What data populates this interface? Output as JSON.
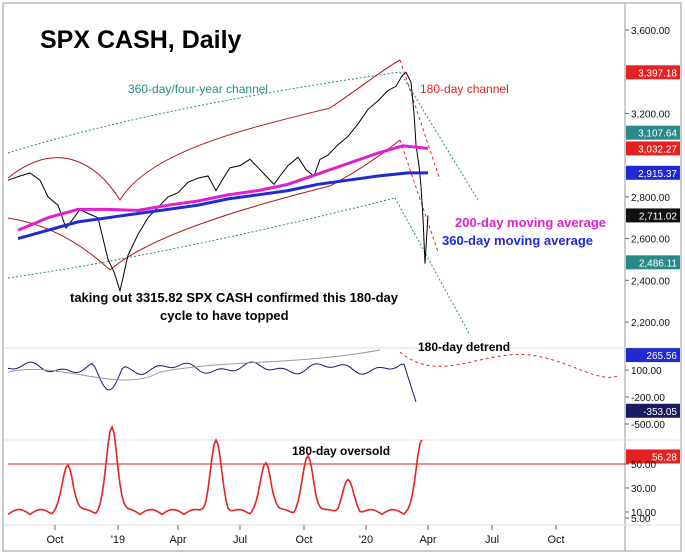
{
  "chart_data": {
    "type": "line",
    "title": "SPX CASH, Daily",
    "x_ticks": [
      "Oct",
      "'19",
      "Apr",
      "Jul",
      "Oct",
      "'20",
      "Apr",
      "Jul",
      "Oct"
    ],
    "price_panel": {
      "y_ticks": [
        {
          "label": "3,600.00",
          "value": 3600
        },
        {
          "label": "3,200.00",
          "value": 3200
        },
        {
          "label": "2,800.00",
          "value": 2800
        },
        {
          "label": "2,600.00",
          "value": 2600
        },
        {
          "label": "2,400.00",
          "value": 2400
        },
        {
          "label": "2,200.00",
          "value": 2200
        }
      ],
      "value_tags": [
        {
          "label": "3,397.18",
          "value": 3397.18,
          "color": "#e32222",
          "text_color": "#ffffff"
        },
        {
          "label": "3,107.64",
          "value": 3107.64,
          "color": "#2a8a8a",
          "text_color": "#ffffff"
        },
        {
          "label": "3,032.27",
          "value": 3032.27,
          "color": "#e32222",
          "text_color": "#ffffff"
        },
        {
          "label": "2,915.37",
          "value": 2915.37,
          "color": "#1f2ad0",
          "text_color": "#ffffff"
        },
        {
          "label": "2,711.02",
          "value": 2711.02,
          "color": "#111111",
          "text_color": "#ffffff"
        },
        {
          "label": "2,486.11",
          "value": 2486.11,
          "color": "#2a8a8a",
          "text_color": "#ffffff"
        }
      ],
      "annotations": {
        "channel_360": "360-day/four-year channel",
        "channel_180": "180-day channel",
        "ma200": "200-day moving average",
        "ma360": "360-day moving average",
        "note_line1": "taking out 3315.82 SPX CASH confirmed this 180-day",
        "note_line2": "cycle to have topped"
      }
    },
    "detrend_panel": {
      "title": "180-day detrend",
      "y_ticks": [
        {
          "label": "100.00",
          "value": 100
        },
        {
          "label": "-200.00",
          "value": -200
        },
        {
          "label": "-500.00",
          "value": -500
        }
      ],
      "value_tags": [
        {
          "label": "265.56",
          "value": 265.56,
          "color": "#1f2ad0",
          "text_color": "#ffffff"
        },
        {
          "label": "-353.05",
          "value": -353.05,
          "color": "#1a1a60",
          "text_color": "#ffffff"
        }
      ]
    },
    "oscillator_panel": {
      "title": "180-day oversold",
      "y_ticks": [
        {
          "label": "50.00",
          "value": 50
        },
        {
          "label": "30.00",
          "value": 30
        },
        {
          "label": "10.00",
          "value": 10
        },
        {
          "label": "5.00",
          "value": 5
        }
      ],
      "value_tags": [
        {
          "label": "56.28",
          "value": 56.28,
          "color": "#e32222",
          "text_color": "#ffffff"
        }
      ],
      "threshold": 50
    },
    "series": [
      {
        "points": [
          [
            0,
            2880
          ],
          [
            12,
            2900
          ],
          [
            22,
            2915
          ],
          [
            32,
            2880
          ],
          [
            40,
            2800
          ],
          [
            50,
            2760
          ],
          [
            58,
            2650
          ],
          [
            66,
            2700
          ],
          [
            72,
            2740
          ],
          [
            80,
            2720
          ],
          [
            90,
            2700
          ],
          [
            100,
            2500
          ],
          [
            106,
            2440
          ],
          [
            112,
            2350
          ],
          [
            120,
            2520
          ],
          [
            130,
            2620
          ],
          [
            140,
            2700
          ],
          [
            150,
            2750
          ],
          [
            160,
            2800
          ],
          [
            170,
            2820
          ],
          [
            180,
            2870
          ],
          [
            190,
            2890
          ],
          [
            200,
            2900
          ],
          [
            208,
            2830
          ],
          [
            214,
            2880
          ],
          [
            222,
            2940
          ],
          [
            232,
            2950
          ],
          [
            242,
            2980
          ],
          [
            252,
            2930
          ],
          [
            260,
            2890
          ],
          [
            266,
            2860
          ],
          [
            272,
            2900
          ],
          [
            280,
            2950
          ],
          [
            290,
            2990
          ],
          [
            298,
            2930
          ],
          [
            306,
            2900
          ],
          [
            312,
            2980
          ],
          [
            320,
            3000
          ],
          [
            330,
            3050
          ],
          [
            340,
            3090
          ],
          [
            350,
            3150
          ],
          [
            360,
            3220
          ],
          [
            370,
            3260
          ],
          [
            380,
            3310
          ],
          [
            388,
            3330
          ],
          [
            394,
            3380
          ],
          [
            398,
            3397
          ],
          [
            403,
            3350
          ],
          [
            406,
            3200
          ],
          [
            408,
            3050
          ],
          [
            411,
            2950
          ],
          [
            413,
            2850
          ],
          [
            415,
            2700
          ],
          [
            417,
            2480
          ],
          [
            420,
            2711
          ]
        ]
      },
      {
        "name": "200-day moving average",
        "points": [
          [
            10,
            2640
          ],
          [
            40,
            2700
          ],
          [
            70,
            2740
          ],
          [
            100,
            2740
          ],
          [
            130,
            2735
          ],
          [
            160,
            2760
          ],
          [
            190,
            2780
          ],
          [
            220,
            2810
          ],
          [
            250,
            2830
          ],
          [
            280,
            2860
          ],
          [
            310,
            2910
          ],
          [
            340,
            2960
          ],
          [
            370,
            3010
          ],
          [
            395,
            3045
          ],
          [
            420,
            3032
          ]
        ]
      },
      {
        "name": "360-day moving average",
        "points": [
          [
            10,
            2600
          ],
          [
            40,
            2640
          ],
          [
            70,
            2680
          ],
          [
            100,
            2700
          ],
          [
            130,
            2720
          ],
          [
            160,
            2740
          ],
          [
            190,
            2760
          ],
          [
            220,
            2790
          ],
          [
            250,
            2810
          ],
          [
            280,
            2830
          ],
          [
            310,
            2860
          ],
          [
            340,
            2880
          ],
          [
            370,
            2900
          ],
          [
            400,
            2915
          ],
          [
            420,
            2915
          ]
        ]
      }
    ]
  }
}
